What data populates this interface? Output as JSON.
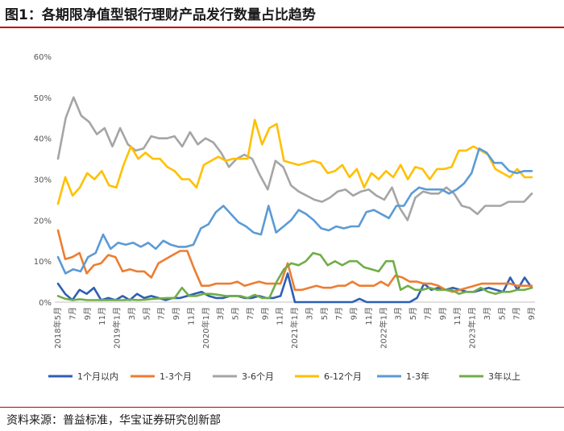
{
  "title": "图1：各期限净值型银行理财产品发行数量占比趋势",
  "source": "资料来源：普益标准，华宝证券研究创新部",
  "chart_data": {
    "type": "line",
    "ylim": [
      0,
      60
    ],
    "yticks": [
      "0%",
      "10%",
      "20%",
      "30%",
      "40%",
      "50%",
      "60%"
    ],
    "x_tick_labels": [
      "2018年5月",
      "7月",
      "9月",
      "11月",
      "2019年1月",
      "3月",
      "5月",
      "7月",
      "9月",
      "11月",
      "2020年1月",
      "3月",
      "5月",
      "7月",
      "9月",
      "11月",
      "2021年1月",
      "3月",
      "5月",
      "7月",
      "9月",
      "11月",
      "2022年1月",
      "3月",
      "5月",
      "7月",
      "9月",
      "11月",
      "2023年1月",
      "3月",
      "5月",
      "7月",
      "9月"
    ],
    "legend_position": "bottom",
    "grid": false,
    "series": [
      {
        "name": "1个月以内",
        "color": "#2e5fb3",
        "values": [
          4.5,
          2,
          0.5,
          3,
          2,
          3.5,
          0.5,
          1,
          0.5,
          1.5,
          0.5,
          2,
          1,
          1.5,
          1,
          0.5,
          1,
          1,
          1.5,
          2,
          2.5,
          1.5,
          1,
          1,
          1.5,
          1.5,
          1,
          1,
          1.5,
          1,
          1,
          1.5,
          7,
          0,
          0,
          0,
          0,
          0,
          0,
          0,
          0,
          0,
          0.8,
          0,
          0,
          0,
          0,
          0,
          0,
          0,
          1,
          4.5,
          3,
          3.5,
          3,
          3.5,
          3,
          2.5,
          2.5,
          3,
          3.5,
          3,
          2.5,
          6,
          3,
          6,
          3.5
        ]
      },
      {
        "name": "1-3个月",
        "color": "#ed7d31",
        "values": [
          17.5,
          10.5,
          11,
          12,
          7,
          9,
          9.5,
          11.5,
          11,
          7.5,
          8,
          7.5,
          7.5,
          6,
          9.5,
          10.5,
          11.5,
          12.5,
          12.5,
          8,
          4,
          4,
          4.5,
          4.5,
          4.5,
          5,
          4,
          4.5,
          5,
          4.5,
          4.5,
          4.5,
          9.5,
          3,
          3,
          3.5,
          4,
          3.5,
          3.5,
          4,
          4,
          5,
          4,
          4,
          4,
          5,
          4,
          6.5,
          6,
          5,
          5,
          4.5,
          4.5,
          4,
          3,
          2.5,
          3,
          3.5,
          4,
          4.5,
          4.5,
          4.5,
          4.5,
          4.5,
          4,
          4,
          4
        ]
      },
      {
        "name": "3-6个月",
        "color": "#a5a5a5",
        "values": [
          35,
          45,
          50,
          45.5,
          44,
          41,
          42.5,
          38,
          42.5,
          38.5,
          37,
          37.5,
          40.5,
          40,
          40,
          40.5,
          38,
          41.5,
          38.5,
          40,
          39,
          36.5,
          33,
          35,
          36,
          35,
          31,
          27.5,
          34.5,
          33,
          28.5,
          27,
          26,
          25,
          24.5,
          25.5,
          27,
          27.5,
          26,
          27,
          27.5,
          26,
          25,
          28,
          23,
          20,
          25.5,
          27,
          26.5,
          26.5,
          28,
          26.5,
          23.5,
          23,
          21.5,
          23.5,
          23.5,
          23.5,
          24.5,
          24.5,
          24.5,
          26.5
        ]
      },
      {
        "name": "6-12个月",
        "color": "#ffc000",
        "values": [
          24,
          30.5,
          26,
          28,
          31.5,
          30,
          32,
          28.5,
          28,
          33.5,
          38,
          35,
          36.5,
          35,
          35,
          33,
          32,
          30,
          30,
          28,
          33.5,
          34.5,
          35.5,
          34.5,
          35,
          35,
          35,
          44.5,
          38.5,
          42.5,
          43.5,
          34.5,
          34,
          33.5,
          34,
          34.5,
          34,
          31.5,
          32,
          33.5,
          30.5,
          32.5,
          28,
          31.5,
          30,
          32,
          30.5,
          33.5,
          30,
          33,
          32.5,
          30,
          32.5,
          32.5,
          33,
          37,
          37,
          38,
          37,
          36,
          32.5,
          31.5,
          30.5,
          32.5,
          30.5,
          30.5
        ]
      },
      {
        "name": "1-3年",
        "color": "#5b9bd5",
        "values": [
          11,
          7,
          8,
          7.5,
          11,
          12,
          16.5,
          13,
          14.5,
          14,
          14.5,
          13.5,
          14.5,
          13,
          15,
          14,
          13.5,
          13.5,
          14,
          18,
          19,
          22,
          23.5,
          21.5,
          19.5,
          18.5,
          17,
          16.5,
          23.5,
          17,
          18.5,
          20,
          22.5,
          21.5,
          20,
          18,
          17.5,
          18.5,
          18,
          18.5,
          18.5,
          22,
          22.5,
          21.5,
          20.5,
          23.5,
          23.5,
          26.5,
          28,
          27.5,
          27.5,
          27.5,
          26.5,
          27.5,
          29,
          31.5,
          37.5,
          36.5,
          34,
          34,
          32,
          31.5,
          32,
          32
        ]
      },
      {
        "name": "3年以上",
        "color": "#70ad47",
        "values": [
          1.5,
          0.8,
          0.5,
          0.7,
          0.5,
          0.5,
          0.5,
          0.5,
          0.5,
          0.5,
          0.6,
          0.5,
          0.6,
          0.8,
          0.9,
          1,
          1,
          3.5,
          1.5,
          1.5,
          2,
          2,
          1.8,
          1.5,
          1.5,
          1.5,
          1,
          1.8,
          1,
          1,
          5,
          8,
          9.5,
          9,
          10,
          12,
          11.5,
          9,
          10,
          9,
          10,
          10,
          8.5,
          8,
          7.5,
          10,
          10,
          3,
          4,
          3,
          3,
          3.5,
          3,
          3,
          3,
          2,
          2.5,
          2.5,
          3.5,
          2.5,
          2,
          2.5,
          2.5,
          3,
          3,
          3.5
        ]
      }
    ]
  }
}
